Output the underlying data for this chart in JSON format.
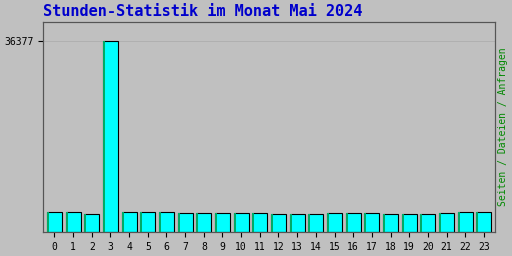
{
  "title": "Stunden-Statistik im Monat Mai 2024",
  "title_color": "#0000cc",
  "title_fontsize": 11,
  "ylabel_right": "Seiten / Dateien / Anfragen",
  "ylabel_right_color": "#008800",
  "background_color": "#c0c0c0",
  "plot_bg_color": "#c0c0c0",
  "bar_face_color": "#00ffff",
  "bar_edge_color": "#000000",
  "bar_edge_width": 0.8,
  "bar_left_strip_color": "#00aa66",
  "categories": [
    0,
    1,
    2,
    3,
    4,
    5,
    6,
    7,
    8,
    9,
    10,
    11,
    12,
    13,
    14,
    15,
    16,
    17,
    18,
    19,
    20,
    21,
    22,
    23
  ],
  "values": [
    3800,
    3750,
    3500,
    36377,
    3800,
    3900,
    3900,
    3700,
    3700,
    3600,
    3600,
    3550,
    3500,
    3500,
    3450,
    3700,
    3550,
    3600,
    3500,
    3500,
    3480,
    3600,
    3750,
    3800
  ],
  "ytick_labels": [
    "36377"
  ],
  "ytick_values": [
    36377
  ],
  "ylim": [
    0,
    40000
  ],
  "grid_color": "#aaaaaa",
  "tick_color": "#000000",
  "font_family": "monospace"
}
